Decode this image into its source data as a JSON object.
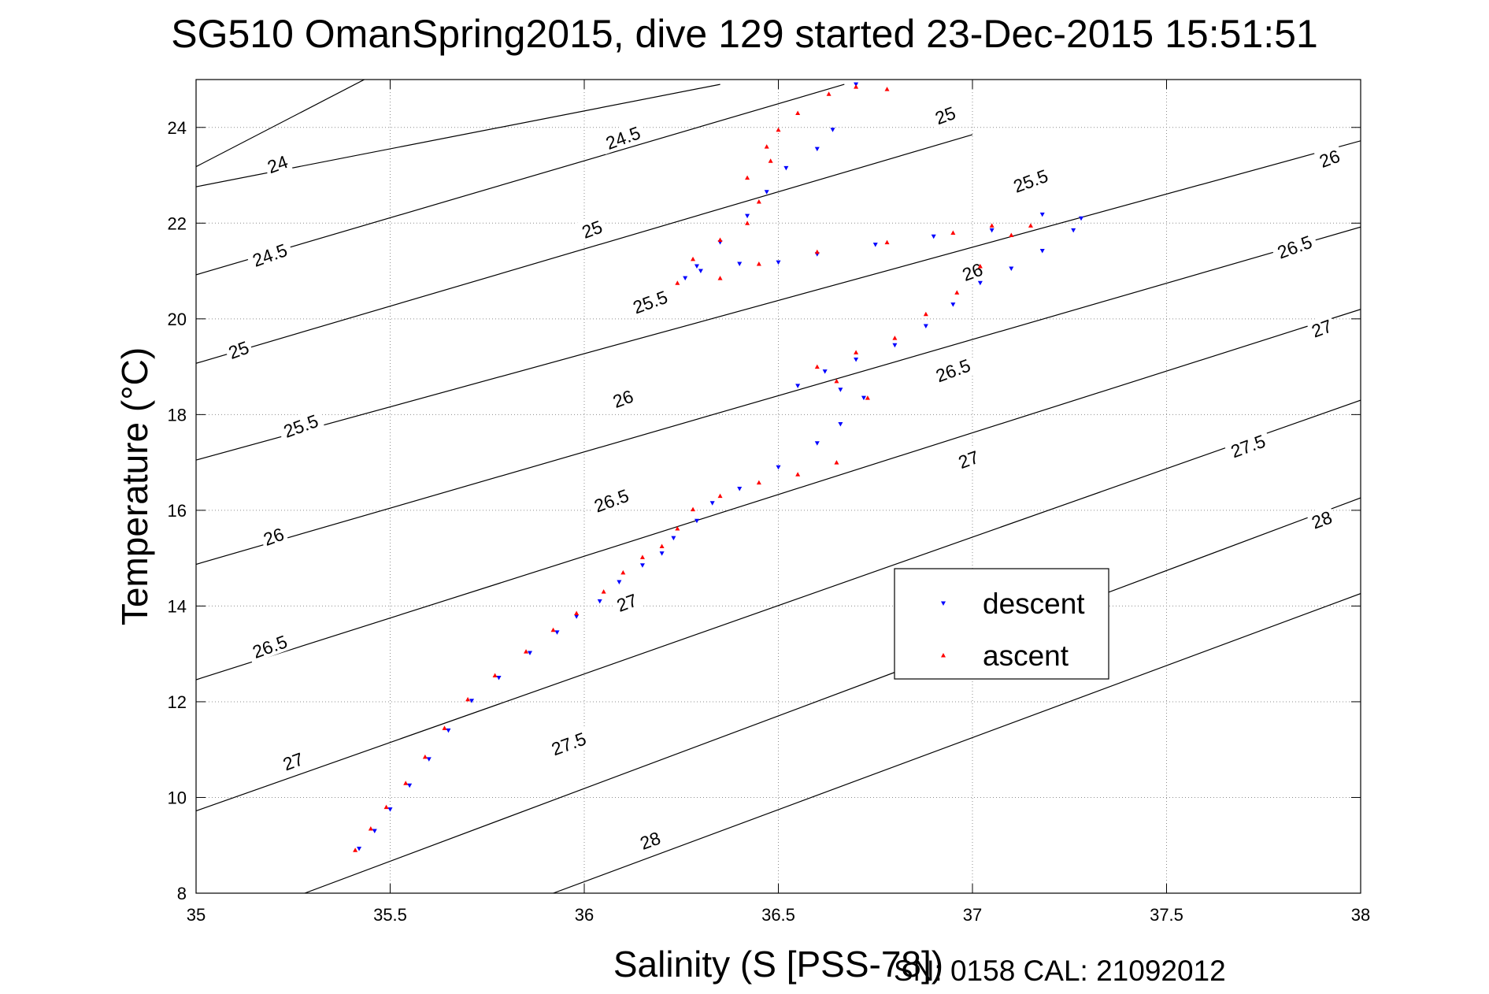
{
  "chart_data": {
    "type": "scatter",
    "title": "SG510 OmanSpring2015, dive 129 started 23-Dec-2015 15:51:51",
    "xlabel": "Salinity (S [PSS-78])",
    "ylabel": "Temperature (°C)",
    "footer": "SN: 0158  CAL: 21092012",
    "xlim": [
      35,
      38
    ],
    "ylim": [
      8,
      25
    ],
    "xticks": [
      35,
      35.5,
      36,
      36.5,
      37,
      37.5,
      38
    ],
    "yticks": [
      8,
      10,
      12,
      14,
      16,
      18,
      20,
      22,
      24
    ],
    "grid": true,
    "legend": {
      "position": "lower-right",
      "entries": [
        {
          "label": "descent",
          "color": "#0000ff",
          "marker": "triangle-down"
        },
        {
          "label": "ascent",
          "color": "#ff0000",
          "marker": "triangle-up"
        }
      ]
    },
    "isopycnals": {
      "color": "#000000",
      "lines": [
        {
          "label": "24",
          "points": [
            [
              35.0,
              23.18
            ],
            [
              35.5,
              25.28
            ]
          ]
        },
        {
          "label": "24.5",
          "points": [
            [
              35.0,
              22.76
            ],
            [
              36.35,
              24.9
            ]
          ]
        },
        {
          "label": "25",
          "points": [
            [
              35.0,
              20.92
            ],
            [
              36.67,
              24.9
            ]
          ]
        },
        {
          "label": "25.5",
          "points": [
            [
              35.0,
              19.07
            ],
            [
              37.0,
              23.85
            ]
          ]
        },
        {
          "label": "26",
          "points": [
            [
              35.0,
              17.05
            ],
            [
              38.0,
              23.72
            ]
          ]
        },
        {
          "label": "26.5",
          "points": [
            [
              35.0,
              14.87
            ],
            [
              38.0,
              21.92
            ]
          ]
        },
        {
          "label": "27",
          "points": [
            [
              35.0,
              12.46
            ],
            [
              38.0,
              20.2
            ]
          ]
        },
        {
          "label": "27.5",
          "points": [
            [
              35.0,
              9.72
            ],
            [
              38.0,
              18.3
            ]
          ]
        },
        {
          "label": "28",
          "points": [
            [
              35.28,
              8.0
            ],
            [
              38.0,
              16.26
            ]
          ]
        },
        {
          "label": "",
          "points": [
            [
              35.92,
              8.0
            ],
            [
              38.0,
              14.26
            ]
          ]
        }
      ],
      "labels": [
        {
          "text": "24",
          "x": 35.21,
          "y": 23.23
        },
        {
          "text": "24.5",
          "x": 35.19,
          "y": 21.33
        },
        {
          "text": "25",
          "x": 35.11,
          "y": 19.35
        },
        {
          "text": "25.5",
          "x": 35.27,
          "y": 17.76
        },
        {
          "text": "26",
          "x": 35.2,
          "y": 15.45
        },
        {
          "text": "26.5",
          "x": 35.19,
          "y": 13.15
        },
        {
          "text": "27",
          "x": 35.25,
          "y": 10.75
        },
        {
          "text": "24.5",
          "x": 36.1,
          "y": 23.78
        },
        {
          "text": "25",
          "x": 36.02,
          "y": 21.87
        },
        {
          "text": "25.5",
          "x": 36.17,
          "y": 20.35
        },
        {
          "text": "26",
          "x": 36.1,
          "y": 18.33
        },
        {
          "text": "26.5",
          "x": 36.07,
          "y": 16.2
        },
        {
          "text": "27",
          "x": 36.11,
          "y": 14.07
        },
        {
          "text": "27.5",
          "x": 35.96,
          "y": 11.12
        },
        {
          "text": "28",
          "x": 36.17,
          "y": 9.1
        },
        {
          "text": "25",
          "x": 36.93,
          "y": 24.25
        },
        {
          "text": "25.5",
          "x": 37.15,
          "y": 22.88
        },
        {
          "text": "26",
          "x": 37.0,
          "y": 20.98
        },
        {
          "text": "26.5",
          "x": 36.95,
          "y": 18.92
        },
        {
          "text": "27",
          "x": 36.99,
          "y": 17.06
        },
        {
          "text": "26",
          "x": 37.92,
          "y": 23.35
        },
        {
          "text": "26.5",
          "x": 37.83,
          "y": 21.5
        },
        {
          "text": "27",
          "x": 37.9,
          "y": 19.8
        },
        {
          "text": "27.5",
          "x": 37.71,
          "y": 17.34
        },
        {
          "text": "28",
          "x": 37.9,
          "y": 15.8
        }
      ]
    },
    "series": [
      {
        "name": "descent",
        "color": "#0000ff",
        "marker": "triangle-down",
        "points": [
          [
            35.42,
            8.93
          ],
          [
            35.46,
            9.3
          ],
          [
            35.5,
            9.75
          ],
          [
            35.55,
            10.25
          ],
          [
            35.6,
            10.8
          ],
          [
            35.65,
            11.4
          ],
          [
            35.71,
            12.02
          ],
          [
            35.78,
            12.5
          ],
          [
            35.86,
            13.02
          ],
          [
            35.93,
            13.45
          ],
          [
            35.98,
            13.78
          ],
          [
            36.04,
            14.1
          ],
          [
            36.09,
            14.5
          ],
          [
            36.15,
            14.85
          ],
          [
            36.2,
            15.1
          ],
          [
            36.23,
            15.42
          ],
          [
            36.29,
            15.78
          ],
          [
            36.33,
            16.15
          ],
          [
            36.4,
            16.45
          ],
          [
            36.5,
            16.9
          ],
          [
            36.6,
            17.4
          ],
          [
            36.66,
            17.8
          ],
          [
            36.72,
            18.35
          ],
          [
            36.66,
            18.52
          ],
          [
            36.55,
            18.6
          ],
          [
            36.62,
            18.9
          ],
          [
            36.7,
            19.15
          ],
          [
            36.8,
            19.45
          ],
          [
            36.88,
            19.85
          ],
          [
            36.95,
            20.3
          ],
          [
            37.02,
            20.75
          ],
          [
            37.1,
            21.05
          ],
          [
            37.18,
            21.42
          ],
          [
            37.26,
            21.85
          ],
          [
            37.28,
            22.1
          ],
          [
            37.18,
            22.18
          ],
          [
            37.05,
            21.85
          ],
          [
            36.9,
            21.72
          ],
          [
            36.75,
            21.55
          ],
          [
            36.6,
            21.35
          ],
          [
            36.5,
            21.18
          ],
          [
            36.4,
            21.15
          ],
          [
            36.3,
            21.0
          ],
          [
            36.26,
            20.85
          ],
          [
            36.29,
            21.1
          ],
          [
            36.35,
            21.6
          ],
          [
            36.42,
            22.15
          ],
          [
            36.47,
            22.65
          ],
          [
            36.52,
            23.15
          ],
          [
            36.6,
            23.55
          ],
          [
            36.64,
            23.95
          ],
          [
            36.7,
            24.9
          ]
        ]
      },
      {
        "name": "ascent",
        "color": "#ff0000",
        "marker": "triangle-up",
        "points": [
          [
            35.41,
            8.9
          ],
          [
            35.45,
            9.35
          ],
          [
            35.49,
            9.8
          ],
          [
            35.54,
            10.3
          ],
          [
            35.59,
            10.85
          ],
          [
            35.64,
            11.45
          ],
          [
            35.7,
            12.05
          ],
          [
            35.77,
            12.55
          ],
          [
            35.85,
            13.05
          ],
          [
            35.92,
            13.5
          ],
          [
            35.98,
            13.85
          ],
          [
            36.05,
            14.3
          ],
          [
            36.1,
            14.7
          ],
          [
            36.15,
            15.02
          ],
          [
            36.2,
            15.25
          ],
          [
            36.24,
            15.62
          ],
          [
            36.28,
            16.02
          ],
          [
            36.35,
            16.3
          ],
          [
            36.45,
            16.58
          ],
          [
            36.55,
            16.75
          ],
          [
            36.65,
            17.0
          ],
          [
            36.73,
            18.35
          ],
          [
            36.65,
            18.7
          ],
          [
            36.6,
            19.0
          ],
          [
            36.7,
            19.3
          ],
          [
            36.8,
            19.6
          ],
          [
            36.88,
            20.1
          ],
          [
            36.96,
            20.55
          ],
          [
            37.02,
            21.1
          ],
          [
            37.1,
            21.75
          ],
          [
            37.15,
            21.95
          ],
          [
            37.05,
            21.95
          ],
          [
            36.95,
            21.8
          ],
          [
            36.78,
            21.6
          ],
          [
            36.6,
            21.4
          ],
          [
            36.45,
            21.15
          ],
          [
            36.35,
            20.85
          ],
          [
            36.24,
            20.75
          ],
          [
            36.28,
            21.25
          ],
          [
            36.35,
            21.65
          ],
          [
            36.42,
            22.0
          ],
          [
            36.45,
            22.45
          ],
          [
            36.42,
            22.95
          ],
          [
            36.48,
            23.3
          ],
          [
            36.47,
            23.6
          ],
          [
            36.5,
            23.95
          ],
          [
            36.55,
            24.3
          ],
          [
            36.63,
            24.7
          ],
          [
            36.7,
            24.85
          ],
          [
            36.78,
            24.8
          ]
        ]
      }
    ]
  }
}
